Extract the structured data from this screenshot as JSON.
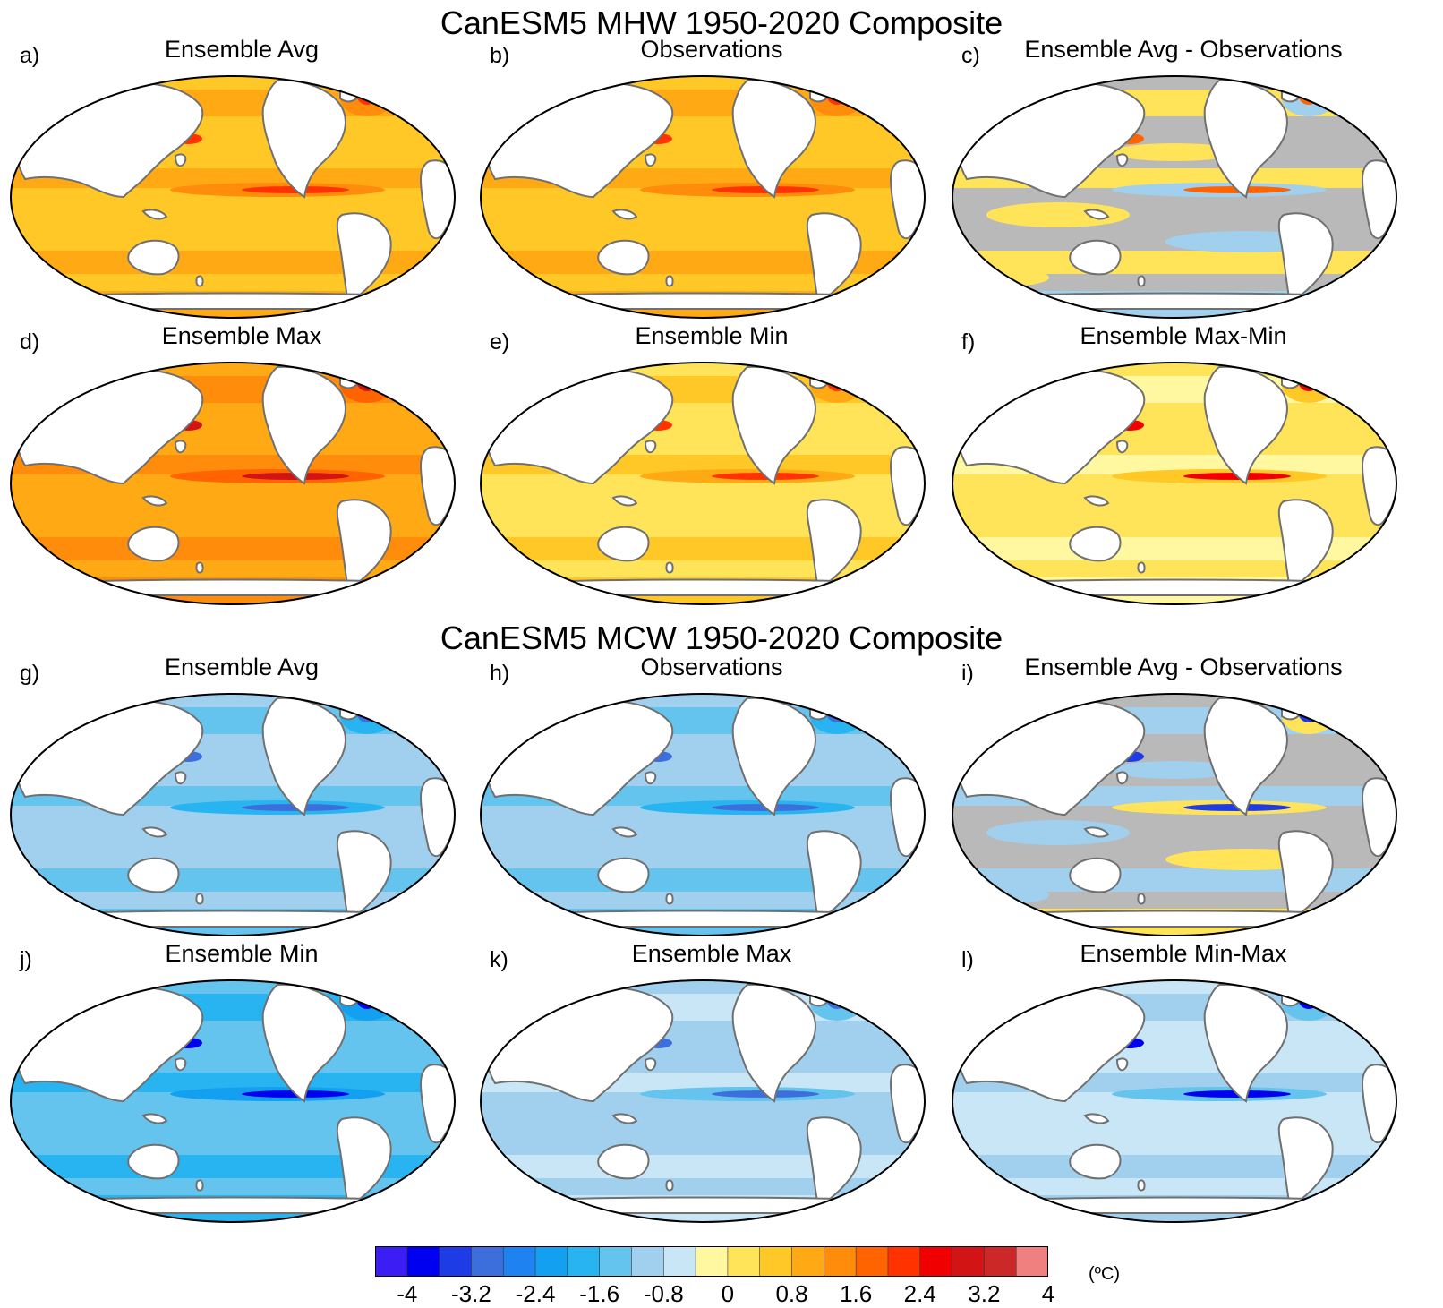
{
  "colors": {
    "palette": [
      "#3c1ef5",
      "#0000f0",
      "#1e3ce6",
      "#3c6edc",
      "#1e82f0",
      "#14a0f0",
      "#28b4f0",
      "#64c4ee",
      "#a0d0ee",
      "#c8e6f5",
      "#fff8a0",
      "#ffe45a",
      "#ffc826",
      "#ffaa14",
      "#ff8c0a",
      "#ff6400",
      "#ff3200",
      "#f00000",
      "#d21414",
      "#cd2828",
      "#f08080"
    ],
    "coastline": "#707070",
    "land": "#ffffff",
    "neutral_gray": "#b9b9b9"
  },
  "sections": [
    {
      "title": "CanESM5 MHW 1950-2020 Composite",
      "panels": [
        {
          "letter": "a)",
          "title": "Ensemble Avg",
          "scheme": "warm-mid"
        },
        {
          "letter": "b)",
          "title": "Observations",
          "scheme": "warm-mid"
        },
        {
          "letter": "c)",
          "title": "Ensemble Avg - Observations",
          "scheme": "diff-warm"
        },
        {
          "letter": "d)",
          "title": "Ensemble Max",
          "scheme": "warm-high"
        },
        {
          "letter": "e)",
          "title": "Ensemble Min",
          "scheme": "warm-low"
        },
        {
          "letter": "f)",
          "title": "Ensemble Max-Min",
          "scheme": "warm-spread"
        }
      ]
    },
    {
      "title": "CanESM5 MCW 1950-2020 Composite",
      "panels": [
        {
          "letter": "g)",
          "title": "Ensemble Avg",
          "scheme": "cool-mid"
        },
        {
          "letter": "h)",
          "title": "Observations",
          "scheme": "cool-mid"
        },
        {
          "letter": "i)",
          "title": "Ensemble Avg - Observations",
          "scheme": "diff-cool"
        },
        {
          "letter": "j)",
          "title": "Ensemble Min",
          "scheme": "cool-high"
        },
        {
          "letter": "k)",
          "title": "Ensemble Max",
          "scheme": "cool-low"
        },
        {
          "letter": "l)",
          "title": "Ensemble Min-Max",
          "scheme": "cool-spread"
        }
      ]
    }
  ],
  "colorbar": {
    "ticks": [
      "-4",
      "-3.2",
      "-2.4",
      "-1.6",
      "-0.8",
      "0",
      "0.8",
      "1.6",
      "2.4",
      "3.2",
      "4"
    ],
    "unit": "(ºC)"
  }
}
